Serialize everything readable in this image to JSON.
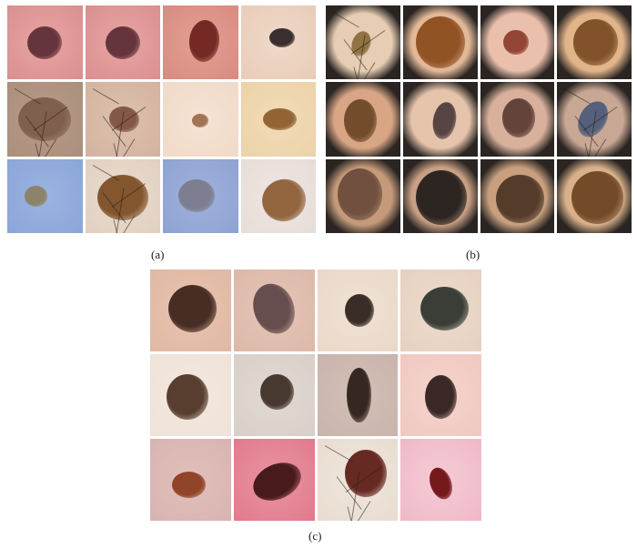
{
  "panels": [
    {
      "id": "a",
      "label": "(a)",
      "tiles": [
        {
          "bg": "#d98f8f",
          "skin": "#e8a6a3",
          "lesion": "#5a2a33",
          "hairs": false
        },
        {
          "bg": "#d98f8f",
          "skin": "#e8a6a3",
          "lesion": "#5a2a33",
          "hairs": false
        },
        {
          "bg": "#d88a80",
          "skin": "#e3a193",
          "lesion": "#6b1f1b",
          "hairs": false
        },
        {
          "bg": "#e8ccb8",
          "skin": "#f0d9c8",
          "lesion": "#2a1f22",
          "hairs": false
        },
        {
          "bg": "#a98f7d",
          "skin": "#b89b86",
          "lesion": "#7a5a48",
          "hairs": true
        },
        {
          "bg": "#d3b3a0",
          "skin": "#dcc0ad",
          "lesion": "#7c4f3f",
          "hairs": true
        },
        {
          "bg": "#f0dac8",
          "skin": "#f5e3d3",
          "lesion": "#9a6a4a",
          "hairs": false
        },
        {
          "bg": "#ecd2a8",
          "skin": "#f1dcb8",
          "lesion": "#8a5a2a",
          "hairs": false
        },
        {
          "bg": "#8aa6d8",
          "skin": "#9ab4e0",
          "lesion": "#8a8060",
          "hairs": false
        },
        {
          "bg": "#e0d0c0",
          "skin": "#eadcce",
          "lesion": "#7a4a20",
          "hairs": true
        },
        {
          "bg": "#8ea2d2",
          "skin": "#a0b2dc",
          "lesion": "#7a7a8a",
          "hairs": false
        },
        {
          "bg": "#e6dcd8",
          "skin": "#efe6e2",
          "lesion": "#8a5a30",
          "hairs": false
        }
      ]
    },
    {
      "id": "b",
      "label": "(b)",
      "tiles": [
        {
          "bg": "#2a2522",
          "skin": "#e6cdb3",
          "lesion": "#8a6a3a",
          "hairs": true
        },
        {
          "bg": "#2a2522",
          "skin": "#e2b898",
          "lesion": "#8a4a1a",
          "hairs": false
        },
        {
          "bg": "#2a2522",
          "skin": "#eac0ac",
          "lesion": "#8a3a2a",
          "hairs": false
        },
        {
          "bg": "#2a2522",
          "skin": "#e2b48a",
          "lesion": "#7a4a22",
          "hairs": false
        },
        {
          "bg": "#2a2522",
          "skin": "#d8a684",
          "lesion": "#6a4424",
          "hairs": false
        },
        {
          "bg": "#2a2522",
          "skin": "#e6c4ac",
          "lesion": "#4a3a3a",
          "hairs": false
        },
        {
          "bg": "#2a2522",
          "skin": "#d8b09c",
          "lesion": "#5a3a32",
          "hairs": false
        },
        {
          "bg": "#2a2522",
          "skin": "#c8a894",
          "lesion": "#4a5a7a",
          "hairs": true
        },
        {
          "bg": "#2a2522",
          "skin": "#c49a7a",
          "lesion": "#6a4a3a",
          "hairs": false
        },
        {
          "bg": "#2a2522",
          "skin": "#c8a084",
          "lesion": "#1e1a1a",
          "hairs": false
        },
        {
          "bg": "#2a2522",
          "skin": "#c8a080",
          "lesion": "#4a3222",
          "hairs": false
        },
        {
          "bg": "#2a2522",
          "skin": "#d8b08a",
          "lesion": "#6a4220",
          "hairs": false
        }
      ]
    },
    {
      "id": "c",
      "label": "(c)",
      "tiles": [
        {
          "bg": "#e0b8a4",
          "skin": "#e8c4b0",
          "lesion": "#3a2018",
          "hairs": false
        },
        {
          "bg": "#dcb8a8",
          "skin": "#e6c6b8",
          "lesion": "#5a4444",
          "hairs": false
        },
        {
          "bg": "#ead8c8",
          "skin": "#f0e2d4",
          "lesion": "#2a1c18",
          "hairs": false
        },
        {
          "bg": "#e6d0c0",
          "skin": "#eedcce",
          "lesion": "#2a302a",
          "hairs": false
        },
        {
          "bg": "#efe2d8",
          "skin": "#f4e8de",
          "lesion": "#4a3020",
          "hairs": false
        },
        {
          "bg": "#d8d0c8",
          "skin": "#e2dad2",
          "lesion": "#3a2a22",
          "hairs": false
        },
        {
          "bg": "#c8b4ac",
          "skin": "#d2bfb6",
          "lesion": "#2a1a14",
          "hairs": false
        },
        {
          "bg": "#f0c8c0",
          "skin": "#f4d4cc",
          "lesion": "#2a1a18",
          "hairs": false
        },
        {
          "bg": "#d8b4b0",
          "skin": "#e0c0bc",
          "lesion": "#8a3a1a",
          "hairs": false
        },
        {
          "bg": "#e07a8c",
          "skin": "#ea94a2",
          "lesion": "#3a1010",
          "hairs": false
        },
        {
          "bg": "#e8dcd0",
          "skin": "#f0e6dc",
          "lesion": "#5a1a12",
          "hairs": true
        },
        {
          "bg": "#f0b8c8",
          "skin": "#f4ccd6",
          "lesion": "#6a0a0a",
          "hairs": false
        }
      ]
    }
  ]
}
